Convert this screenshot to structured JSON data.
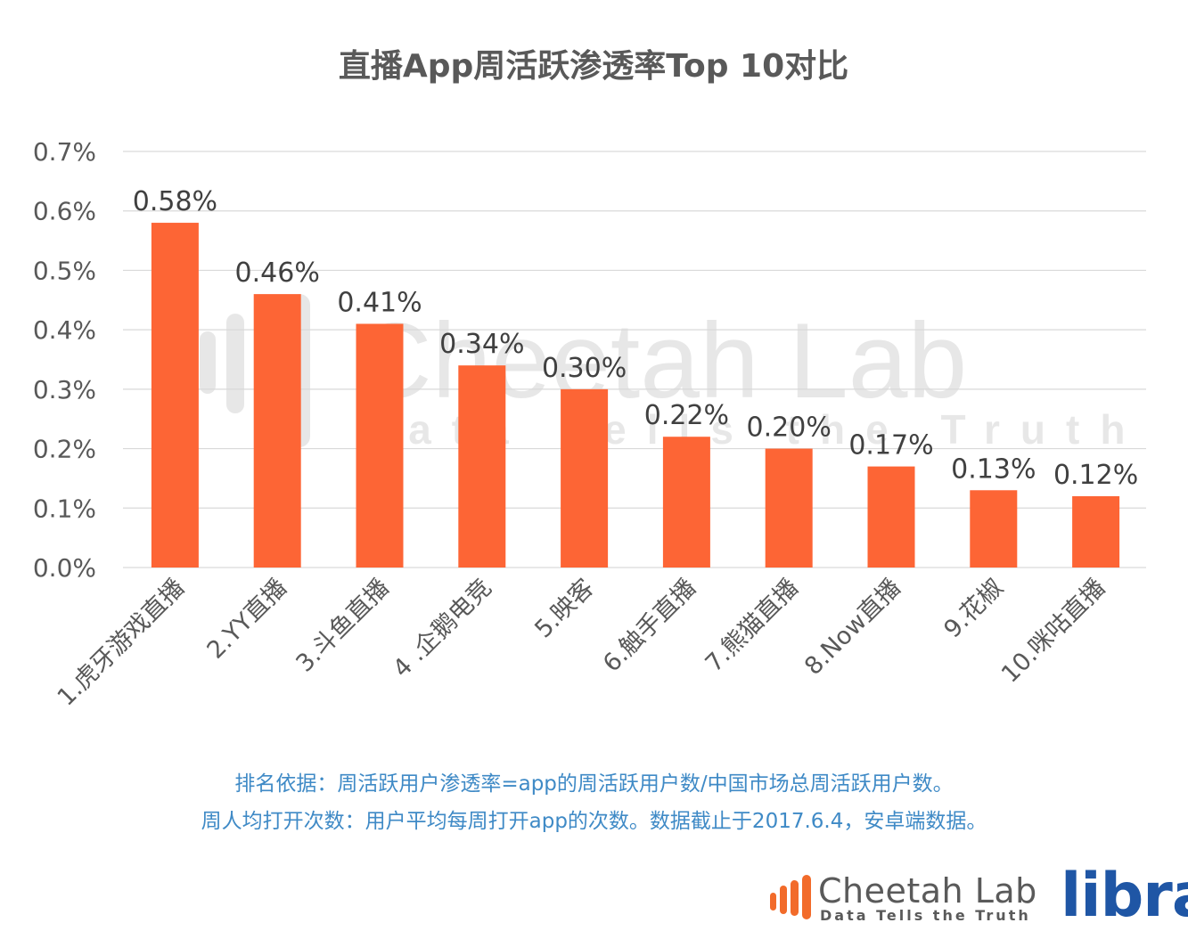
{
  "chart_data": {
    "type": "bar",
    "title": "直播App周活跃渗透率Top 10对比",
    "categories": [
      "1.虎牙游戏直播",
      "2.YY直播",
      "3.斗鱼直播",
      "4 .企鹅电竞",
      "5.映客",
      "6.触手直播",
      "7.熊猫直播",
      "8.Now直播",
      "9.花椒",
      "10.咪咕直播"
    ],
    "values": [
      0.58,
      0.46,
      0.41,
      0.34,
      0.3,
      0.22,
      0.2,
      0.17,
      0.13,
      0.12
    ],
    "data_labels": [
      "0.58%",
      "0.46%",
      "0.41%",
      "0.34%",
      "0.30%",
      "0.22%",
      "0.20%",
      "0.17%",
      "0.13%",
      "0.12%"
    ],
    "y_ticks": [
      0.0,
      0.1,
      0.2,
      0.3,
      0.4,
      0.5,
      0.6,
      0.7
    ],
    "y_tick_labels": [
      "0.0%",
      "0.1%",
      "0.2%",
      "0.3%",
      "0.4%",
      "0.5%",
      "0.6%",
      "0.7%"
    ],
    "ylim": [
      0,
      0.7
    ],
    "xlabel": "",
    "ylabel": "",
    "grid": true,
    "bar_color": "#fd6535"
  },
  "watermark": {
    "name": "Cheetah Lab",
    "tagline": "Data Tells the Truth"
  },
  "notes": {
    "line1": "排名依据：周活跃用户渗透率=app的周活跃用户数/中国市场总周活跃用户数。",
    "line2": "周人均打开次数：用户平均每周打开app的次数。数据截止于2017.6.4，安卓端数据。"
  },
  "logos": {
    "cheetah_name": "Cheetah Lab",
    "cheetah_tagline": "Data Tells the Truth",
    "libra": "libra",
    "cheetah_color": "#f26b2a",
    "libra_color": "#1f56a5"
  }
}
